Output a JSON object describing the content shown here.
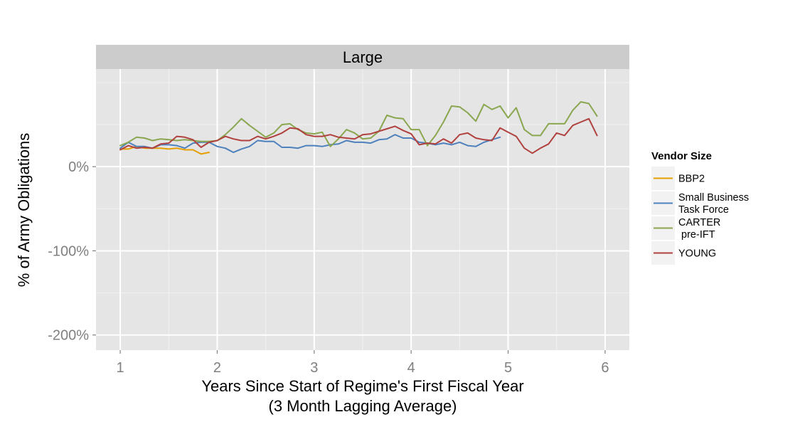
{
  "chart_data": {
    "type": "line",
    "panel_title": "Large",
    "xlabel_line1": "Years Since Start of Regime's First Fiscal Year",
    "xlabel_line2": "(3 Month Lagging Average)",
    "ylabel": "% of Army Obligations",
    "xlim": [
      0.75,
      6.25
    ],
    "ylim": [
      -2.18,
      1.16
    ],
    "x_ticks": [
      1,
      2,
      3,
      4,
      5,
      6
    ],
    "x_tick_labels": [
      "1",
      "2",
      "3",
      "4",
      "5",
      "6"
    ],
    "y_ticks": [
      0,
      -1,
      -2
    ],
    "y_tick_labels": [
      "0%",
      "-100%",
      "-200%"
    ],
    "grid": true,
    "legend_position": "right",
    "legend_title": "Vendor Size",
    "series": [
      {
        "name": "BBP2",
        "color": "#E69F00",
        "x": [
          1.0,
          1.083,
          1.167,
          1.25,
          1.333,
          1.417,
          1.5,
          1.583,
          1.667,
          1.75,
          1.833,
          1.917
        ],
        "y": [
          0.21,
          0.21,
          0.24,
          0.22,
          0.22,
          0.22,
          0.21,
          0.22,
          0.2,
          0.2,
          0.15,
          0.17
        ]
      },
      {
        "name": "Small Business\nTask Force",
        "color": "#4F81BD",
        "x": [
          1.0,
          1.083,
          1.167,
          1.25,
          1.333,
          1.417,
          1.5,
          1.583,
          1.667,
          1.75,
          1.833,
          1.917,
          2.0,
          2.083,
          2.167,
          2.25,
          2.333,
          2.417,
          2.5,
          2.583,
          2.667,
          2.75,
          2.833,
          2.917,
          3.0,
          3.083,
          3.167,
          3.25,
          3.333,
          3.417,
          3.5,
          3.583,
          3.667,
          3.75,
          3.833,
          3.917,
          4.0,
          4.083,
          4.167,
          4.25,
          4.333,
          4.417,
          4.5,
          4.583,
          4.667,
          4.75,
          4.833,
          4.917
        ],
        "y": [
          0.22,
          0.29,
          0.24,
          0.24,
          0.22,
          0.26,
          0.26,
          0.25,
          0.22,
          0.28,
          0.29,
          0.29,
          0.24,
          0.22,
          0.17,
          0.21,
          0.24,
          0.31,
          0.3,
          0.3,
          0.23,
          0.23,
          0.22,
          0.25,
          0.25,
          0.24,
          0.26,
          0.27,
          0.31,
          0.29,
          0.29,
          0.28,
          0.32,
          0.33,
          0.38,
          0.34,
          0.34,
          0.29,
          0.28,
          0.26,
          0.28,
          0.26,
          0.29,
          0.25,
          0.24,
          0.29,
          0.32,
          0.35
        ]
      },
      {
        "name": "CARTER\n pre-IFT",
        "color": "#8AA64F",
        "x": [
          1.0,
          1.083,
          1.167,
          1.25,
          1.333,
          1.417,
          1.5,
          1.583,
          1.667,
          1.75,
          1.833,
          1.917,
          2.0,
          2.083,
          2.167,
          2.25,
          2.333,
          2.417,
          2.5,
          2.583,
          2.667,
          2.75,
          2.833,
          2.917,
          3.0,
          3.083,
          3.167,
          3.25,
          3.333,
          3.417,
          3.5,
          3.583,
          3.667,
          3.75,
          3.833,
          3.917,
          4.0,
          4.083,
          4.167,
          4.25,
          4.333,
          4.417,
          4.5,
          4.583,
          4.667,
          4.75,
          4.833,
          4.917,
          5.0,
          5.083,
          5.167,
          5.25,
          5.333,
          5.417,
          5.5,
          5.583,
          5.667,
          5.75,
          5.833,
          5.917
        ],
        "y": [
          0.25,
          0.29,
          0.35,
          0.34,
          0.31,
          0.33,
          0.32,
          0.31,
          0.32,
          0.31,
          0.3,
          0.3,
          0.31,
          0.38,
          0.47,
          0.57,
          0.49,
          0.42,
          0.35,
          0.4,
          0.5,
          0.51,
          0.44,
          0.4,
          0.39,
          0.41,
          0.24,
          0.33,
          0.44,
          0.4,
          0.33,
          0.34,
          0.42,
          0.61,
          0.58,
          0.57,
          0.44,
          0.44,
          0.25,
          0.37,
          0.53,
          0.72,
          0.71,
          0.64,
          0.54,
          0.74,
          0.68,
          0.72,
          0.58,
          0.7,
          0.44,
          0.37,
          0.37,
          0.51,
          0.51,
          0.51,
          0.67,
          0.77,
          0.75,
          0.6
        ]
      },
      {
        "name": "YOUNG",
        "color": "#B0413E",
        "x": [
          1.0,
          1.083,
          1.167,
          1.25,
          1.333,
          1.417,
          1.5,
          1.583,
          1.667,
          1.75,
          1.833,
          1.917,
          2.0,
          2.083,
          2.167,
          2.25,
          2.333,
          2.417,
          2.5,
          2.583,
          2.667,
          2.75,
          2.833,
          2.917,
          3.0,
          3.083,
          3.167,
          3.25,
          3.333,
          3.417,
          3.5,
          3.583,
          3.667,
          3.75,
          3.833,
          3.917,
          4.0,
          4.083,
          4.167,
          4.25,
          4.333,
          4.417,
          4.5,
          4.583,
          4.667,
          4.75,
          4.833,
          4.917,
          5.0,
          5.083,
          5.167,
          5.25,
          5.333,
          5.417,
          5.5,
          5.583,
          5.667,
          5.75,
          5.833,
          5.917
        ],
        "y": [
          0.2,
          0.25,
          0.22,
          0.23,
          0.22,
          0.27,
          0.28,
          0.36,
          0.35,
          0.32,
          0.23,
          0.29,
          0.31,
          0.36,
          0.33,
          0.31,
          0.31,
          0.36,
          0.33,
          0.36,
          0.4,
          0.46,
          0.45,
          0.38,
          0.36,
          0.36,
          0.38,
          0.35,
          0.34,
          0.33,
          0.38,
          0.39,
          0.42,
          0.45,
          0.48,
          0.43,
          0.39,
          0.26,
          0.28,
          0.27,
          0.33,
          0.28,
          0.38,
          0.4,
          0.34,
          0.32,
          0.31,
          0.46,
          0.41,
          0.36,
          0.22,
          0.16,
          0.22,
          0.27,
          0.4,
          0.37,
          0.49,
          0.53,
          0.57,
          0.37
        ]
      }
    ]
  }
}
